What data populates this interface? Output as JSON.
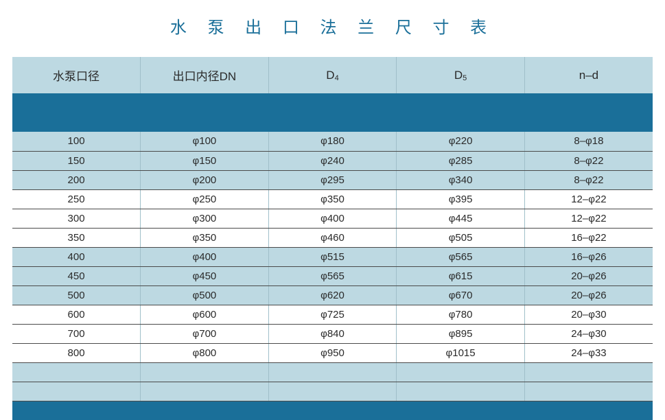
{
  "title": "水 泵 出 口 法 兰 尺 寸 表",
  "colors": {
    "accent": "#1a6f99",
    "header_bg": "#bdd9e2",
    "row_tint": "#bdd9e2",
    "row_plain": "#ffffff",
    "cell_border_v": "#9fbfc9",
    "cell_border_h": "#4a4a4a",
    "text": "#2a2a2a"
  },
  "columns": [
    {
      "label": "水泵口径",
      "sub": ""
    },
    {
      "label": "出口内径DN",
      "sub": ""
    },
    {
      "label": "D",
      "sub": "4"
    },
    {
      "label": "D",
      "sub": "5"
    },
    {
      "label": "n–d",
      "sub": ""
    }
  ],
  "column_widths": [
    "20%",
    "20%",
    "20%",
    "20%",
    "20%"
  ],
  "rows": [
    {
      "tint": true,
      "cells": [
        "100",
        "φ100",
        "φ180",
        "φ220",
        "8–φ18"
      ]
    },
    {
      "tint": true,
      "cells": [
        "150",
        "φ150",
        "φ240",
        "φ285",
        "8–φ22"
      ]
    },
    {
      "tint": true,
      "cells": [
        "200",
        "φ200",
        "φ295",
        "φ340",
        "8–φ22"
      ]
    },
    {
      "tint": false,
      "cells": [
        "250",
        "φ250",
        "φ350",
        "φ395",
        "12–φ22"
      ]
    },
    {
      "tint": false,
      "cells": [
        "300",
        "φ300",
        "φ400",
        "φ445",
        "12–φ22"
      ]
    },
    {
      "tint": false,
      "cells": [
        "350",
        "φ350",
        "φ460",
        "φ505",
        "16–φ22"
      ]
    },
    {
      "tint": true,
      "cells": [
        "400",
        "φ400",
        "φ515",
        "φ565",
        "16–φ26"
      ]
    },
    {
      "tint": true,
      "cells": [
        "450",
        "φ450",
        "φ565",
        "φ615",
        "20–φ26"
      ]
    },
    {
      "tint": true,
      "cells": [
        "500",
        "φ500",
        "φ620",
        "φ670",
        "20–φ26"
      ]
    },
    {
      "tint": false,
      "cells": [
        "600",
        "φ600",
        "φ725",
        "φ780",
        "20–φ30"
      ]
    },
    {
      "tint": false,
      "cells": [
        "700",
        "φ700",
        "φ840",
        "φ895",
        "24–φ30"
      ]
    },
    {
      "tint": false,
      "cells": [
        "800",
        "φ800",
        "φ950",
        "φ1015",
        "24–φ33"
      ]
    },
    {
      "tint": true,
      "cells": [
        "",
        "",
        "",
        "",
        ""
      ]
    },
    {
      "tint": true,
      "cells": [
        "",
        "",
        "",
        "",
        ""
      ]
    }
  ]
}
